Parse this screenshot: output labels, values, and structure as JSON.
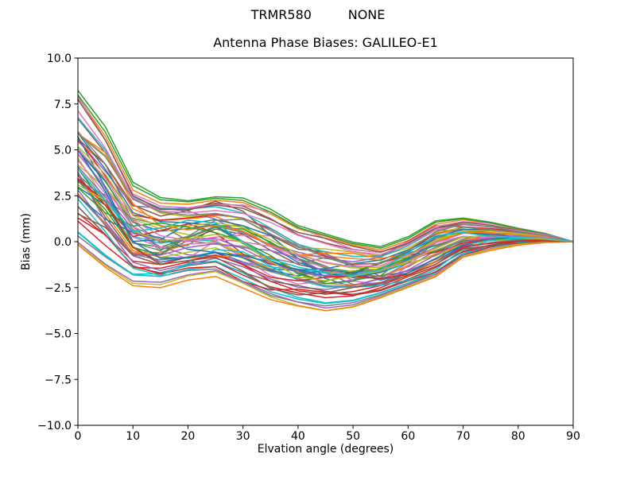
{
  "figure": {
    "suptitle": "TRMR580         NONE"
  },
  "chart_data": {
    "type": "line",
    "title": "Antenna Phase Biases: GALILEO-E1",
    "xlabel": "Elvation angle (degrees)",
    "ylabel": "Bias (mm)",
    "xlim": [
      0,
      90
    ],
    "ylim": [
      -10,
      10
    ],
    "grid": false,
    "legend": false,
    "background": "#ffffff",
    "axis_color": "#000000",
    "xticks": [
      0,
      10,
      20,
      30,
      40,
      50,
      60,
      70,
      80,
      90
    ],
    "xtick_labels": [
      "0",
      "10",
      "20",
      "30",
      "40",
      "50",
      "60",
      "70",
      "80",
      "90"
    ],
    "yticks": [
      10,
      7.5,
      5,
      2.5,
      0,
      -2.5,
      -5,
      -7.5,
      -10
    ],
    "ytick_labels": [
      "10.0",
      "7.5",
      "5.0",
      "2.5",
      "0.0",
      "−2.5",
      "−5.0",
      "−7.5",
      "−10.0"
    ],
    "x": [
      0,
      5,
      10,
      15,
      20,
      25,
      30,
      35,
      40,
      45,
      50,
      55,
      60,
      65,
      70,
      75,
      80,
      85,
      90
    ],
    "n_series": 60,
    "envelope_top": [
      8.3,
      6.3,
      3.3,
      2.5,
      2.35,
      2.55,
      2.45,
      1.8,
      0.9,
      0.45,
      0.0,
      -0.25,
      0.3,
      1.2,
      1.35,
      1.1,
      0.75,
      0.45,
      0.0
    ],
    "envelope_bottom": [
      -0.4,
      -1.6,
      -2.5,
      -2.55,
      -2.1,
      -1.9,
      -2.55,
      -3.2,
      -3.55,
      -3.8,
      -3.6,
      -3.1,
      -2.55,
      -2.0,
      -0.9,
      -0.5,
      -0.2,
      -0.05,
      0.0
    ],
    "series_generation": {
      "seed": 42,
      "wiggle": 0.13
    },
    "palette": [
      "#1f77b4",
      "#ff7f0e",
      "#2ca02c",
      "#d62728",
      "#9467bd",
      "#8c564b",
      "#e377c2",
      "#7f7f7f",
      "#bcbd22",
      "#17becf"
    ],
    "line_width": 1.5
  }
}
